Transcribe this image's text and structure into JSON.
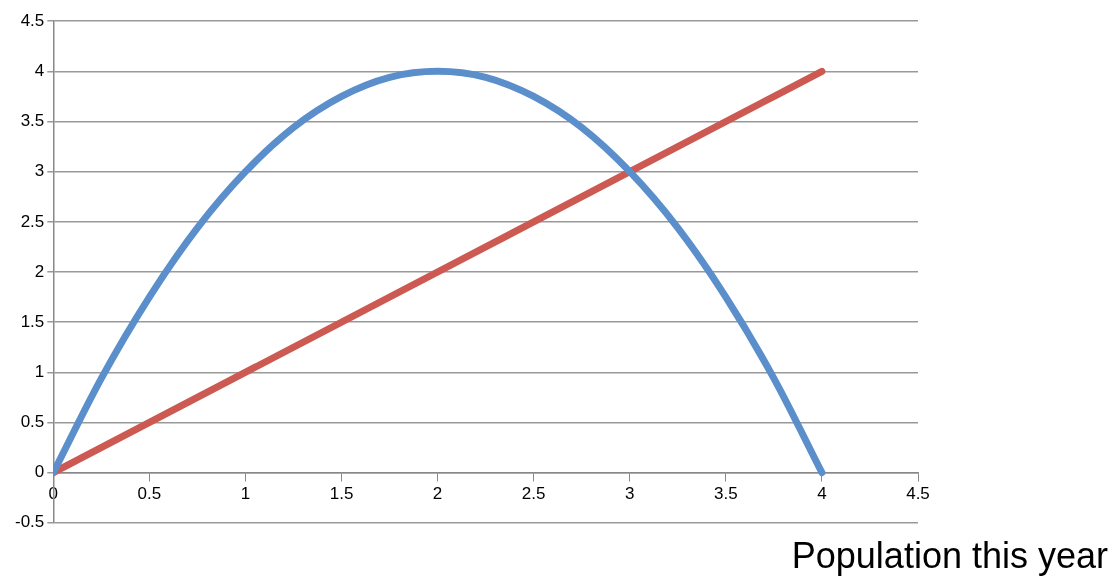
{
  "chart_data": {
    "type": "line",
    "xlabel": "Population this year",
    "series": [
      {
        "color": "#5b8fcb",
        "x": [
          0,
          0.25,
          0.5,
          0.75,
          1,
          1.25,
          1.5,
          1.75,
          2,
          2.25,
          2.5,
          2.75,
          3,
          3.25,
          3.5,
          3.75,
          4
        ],
        "values": [
          0,
          0.94,
          1.75,
          2.44,
          3,
          3.44,
          3.75,
          3.94,
          4,
          3.94,
          3.75,
          3.44,
          3,
          2.44,
          1.75,
          0.94,
          0
        ]
      },
      {
        "color": "#cc5a52",
        "x": [
          0,
          4
        ],
        "values": [
          0,
          4
        ]
      }
    ],
    "xlim": [
      0,
      4.5
    ],
    "xticks": [
      0,
      0.5,
      1,
      1.5,
      2,
      2.5,
      3,
      3.5,
      4,
      4.5
    ],
    "ylim": [
      -0.5,
      4.5
    ],
    "yticks": [
      -0.5,
      0,
      0.5,
      1,
      1.5,
      2,
      2.5,
      3,
      3.5,
      4,
      4.5
    ],
    "grid": "y",
    "legend": false,
    "marker": "none",
    "line_style": "solid"
  }
}
